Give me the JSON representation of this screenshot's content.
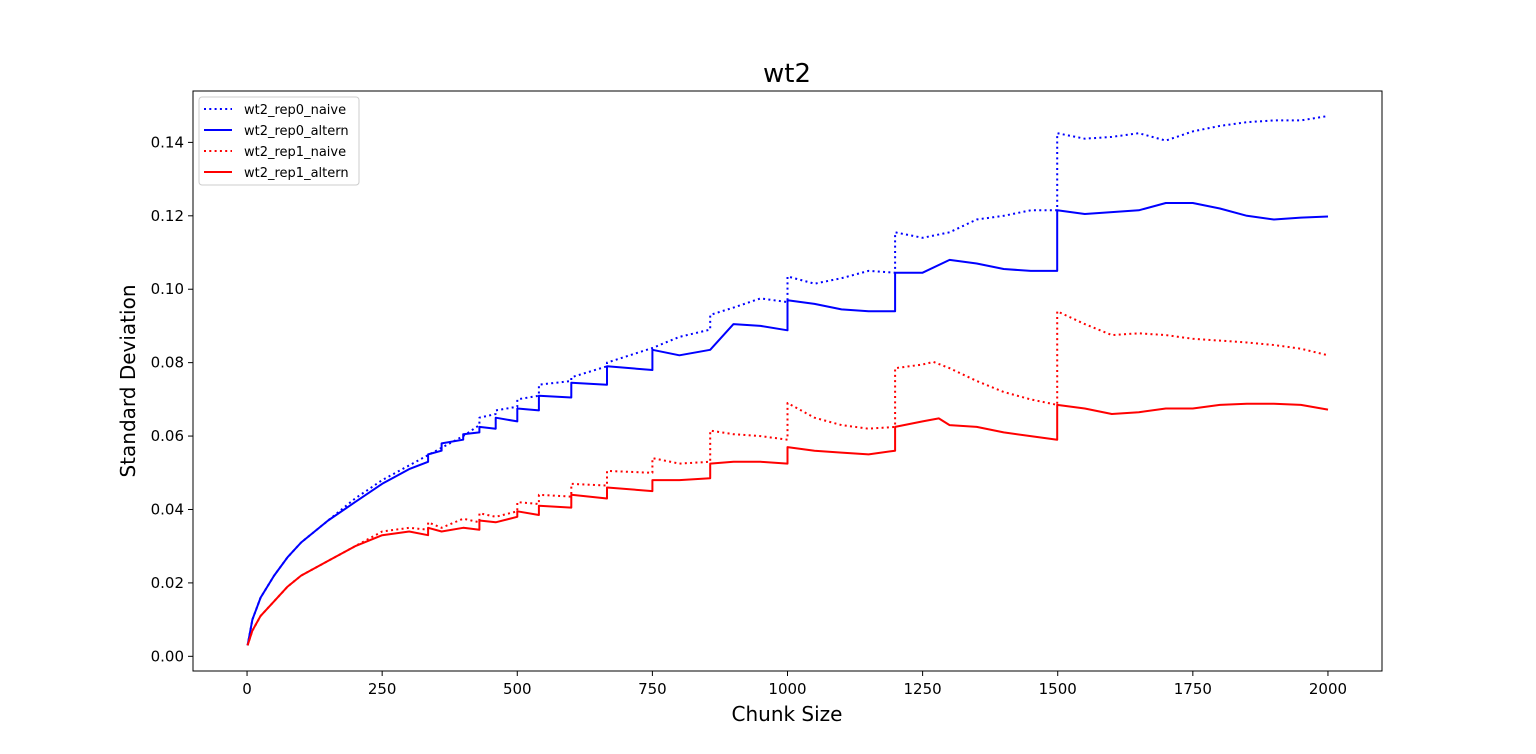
{
  "chart_data": {
    "type": "line",
    "title": "wt2",
    "xlabel": "Chunk Size",
    "ylabel": "Standard Deviation",
    "xlim": [
      -100,
      2100
    ],
    "ylim": [
      -0.004,
      0.154
    ],
    "xticks": [
      0,
      250,
      500,
      750,
      1000,
      1250,
      1500,
      1750,
      2000
    ],
    "xtick_labels": [
      "0",
      "250",
      "500",
      "750",
      "1000",
      "1250",
      "1500",
      "1750",
      "2000"
    ],
    "yticks": [
      0.0,
      0.02,
      0.04,
      0.06,
      0.08,
      0.1,
      0.12,
      0.14
    ],
    "ytick_labels": [
      "0.00",
      "0.02",
      "0.04",
      "0.06",
      "0.08",
      "0.10",
      "0.12",
      "0.14"
    ],
    "grid": false,
    "legend_position": "upper-left",
    "series": [
      {
        "name": "wt2_rep0_naive",
        "color": "#0000ff",
        "linestyle": "dotted",
        "x": [
          1,
          10,
          25,
          50,
          75,
          100,
          150,
          200,
          250,
          300,
          350,
          400,
          430,
          430,
          460,
          460,
          500,
          500,
          540,
          540,
          600,
          600,
          666,
          666,
          750,
          800,
          857,
          857,
          900,
          950,
          1000,
          1000,
          1050,
          1100,
          1150,
          1199,
          1199,
          1250,
          1300,
          1350,
          1400,
          1450,
          1499,
          1499,
          1550,
          1600,
          1650,
          1700,
          1750,
          1800,
          1850,
          1900,
          1950,
          2000
        ],
        "y": [
          0.003,
          0.01,
          0.016,
          0.022,
          0.027,
          0.031,
          0.037,
          0.043,
          0.048,
          0.052,
          0.056,
          0.06,
          0.063,
          0.065,
          0.066,
          0.067,
          0.068,
          0.07,
          0.071,
          0.074,
          0.075,
          0.076,
          0.079,
          0.08,
          0.084,
          0.087,
          0.089,
          0.093,
          0.095,
          0.0975,
          0.0965,
          0.1035,
          0.1015,
          0.103,
          0.105,
          0.1045,
          0.1155,
          0.114,
          0.1155,
          0.119,
          0.12,
          0.1215,
          0.1215,
          0.1425,
          0.141,
          0.1415,
          0.1425,
          0.1405,
          0.143,
          0.1445,
          0.1455,
          0.146,
          0.146,
          0.1472
        ]
      },
      {
        "name": "wt2_rep0_altern",
        "color": "#0000ff",
        "linestyle": "solid",
        "x": [
          1,
          10,
          25,
          50,
          75,
          100,
          150,
          200,
          250,
          300,
          335,
          335,
          360,
          360,
          400,
          400,
          430,
          430,
          460,
          460,
          500,
          500,
          540,
          540,
          600,
          600,
          666,
          666,
          750,
          750,
          800,
          857,
          857,
          900,
          950,
          1000,
          1000,
          1050,
          1100,
          1150,
          1199,
          1199,
          1250,
          1300,
          1350,
          1400,
          1450,
          1499,
          1499,
          1550,
          1600,
          1650,
          1700,
          1750,
          1800,
          1850,
          1900,
          1950,
          2000
        ],
        "y": [
          0.003,
          0.01,
          0.016,
          0.022,
          0.027,
          0.031,
          0.037,
          0.042,
          0.047,
          0.051,
          0.053,
          0.055,
          0.056,
          0.058,
          0.059,
          0.0605,
          0.061,
          0.0625,
          0.062,
          0.065,
          0.064,
          0.0675,
          0.067,
          0.071,
          0.0705,
          0.0745,
          0.074,
          0.079,
          0.078,
          0.0835,
          0.082,
          0.0835,
          0.0835,
          0.0905,
          0.09,
          0.0888,
          0.097,
          0.096,
          0.0945,
          0.094,
          0.094,
          0.1045,
          0.1045,
          0.108,
          0.107,
          0.1055,
          0.105,
          0.105,
          0.1215,
          0.1205,
          0.121,
          0.1215,
          0.1235,
          0.1235,
          0.122,
          0.12,
          0.119,
          0.1195,
          0.1198
        ]
      },
      {
        "name": "wt2_rep1_naive",
        "color": "#ff0000",
        "linestyle": "dotted",
        "x": [
          1,
          10,
          25,
          50,
          75,
          100,
          150,
          200,
          250,
          300,
          335,
          335,
          360,
          400,
          430,
          430,
          460,
          500,
          500,
          540,
          540,
          600,
          600,
          666,
          666,
          750,
          750,
          800,
          857,
          857,
          900,
          950,
          1000,
          1000,
          1050,
          1100,
          1150,
          1199,
          1199,
          1250,
          1270,
          1300,
          1350,
          1400,
          1450,
          1499,
          1499,
          1550,
          1600,
          1650,
          1700,
          1750,
          1800,
          1850,
          1900,
          1950,
          2000
        ],
        "y": [
          0.003,
          0.007,
          0.011,
          0.015,
          0.019,
          0.022,
          0.026,
          0.03,
          0.034,
          0.035,
          0.0345,
          0.0365,
          0.035,
          0.0375,
          0.0365,
          0.039,
          0.038,
          0.0395,
          0.042,
          0.0415,
          0.044,
          0.0435,
          0.047,
          0.0465,
          0.0505,
          0.05,
          0.054,
          0.0525,
          0.053,
          0.0615,
          0.0605,
          0.06,
          0.059,
          0.069,
          0.065,
          0.063,
          0.062,
          0.0625,
          0.0785,
          0.0795,
          0.0802,
          0.0785,
          0.075,
          0.072,
          0.07,
          0.0685,
          0.094,
          0.0905,
          0.0875,
          0.088,
          0.0875,
          0.0865,
          0.086,
          0.0855,
          0.0848,
          0.0838,
          0.082
        ]
      },
      {
        "name": "wt2_rep1_altern",
        "color": "#ff0000",
        "linestyle": "solid",
        "x": [
          1,
          10,
          25,
          50,
          75,
          100,
          150,
          200,
          250,
          300,
          335,
          335,
          360,
          400,
          430,
          430,
          460,
          500,
          500,
          540,
          540,
          600,
          600,
          666,
          666,
          750,
          750,
          800,
          857,
          857,
          900,
          950,
          1000,
          1000,
          1050,
          1100,
          1150,
          1199,
          1199,
          1250,
          1280,
          1300,
          1350,
          1400,
          1450,
          1499,
          1499,
          1550,
          1600,
          1650,
          1700,
          1750,
          1800,
          1850,
          1900,
          1950,
          2000
        ],
        "y": [
          0.003,
          0.007,
          0.011,
          0.015,
          0.019,
          0.022,
          0.026,
          0.03,
          0.033,
          0.034,
          0.033,
          0.035,
          0.034,
          0.035,
          0.0345,
          0.037,
          0.0365,
          0.038,
          0.0395,
          0.0385,
          0.041,
          0.0405,
          0.044,
          0.043,
          0.046,
          0.045,
          0.048,
          0.048,
          0.0485,
          0.0525,
          0.053,
          0.053,
          0.0525,
          0.057,
          0.056,
          0.0555,
          0.055,
          0.056,
          0.0625,
          0.064,
          0.0648,
          0.063,
          0.0625,
          0.061,
          0.06,
          0.059,
          0.0685,
          0.0675,
          0.066,
          0.0665,
          0.0675,
          0.0675,
          0.0685,
          0.0688,
          0.0688,
          0.0685,
          0.0672
        ]
      }
    ]
  }
}
